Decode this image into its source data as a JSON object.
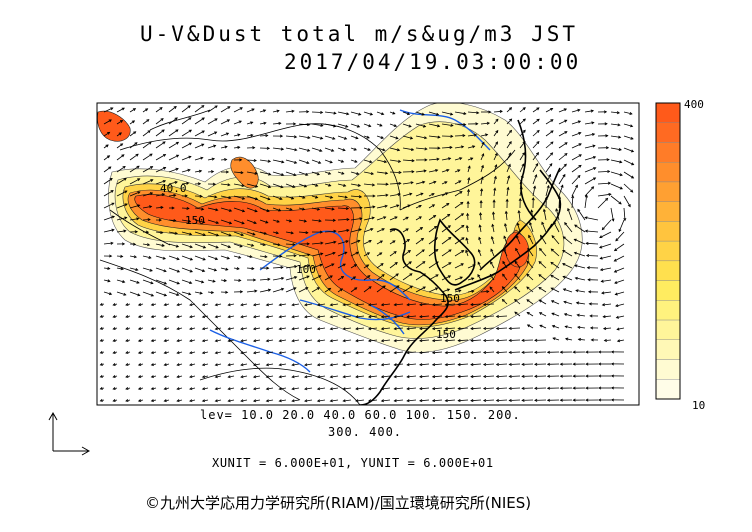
{
  "title": {
    "line1": "U-V&Dust total m/s&ug/m3 JST",
    "line2": "2017/04/19.03:00:00"
  },
  "levels": {
    "line1": "lev= 10.0 20.0 40.0 60.0 100. 150. 200.",
    "line2": "300. 400."
  },
  "units_text": "XUNIT = 6.000E+01, YUNIT = 6.000E+01",
  "colorbar": {
    "max_label": "400",
    "min_label": "10",
    "colors": [
      "#ff5a1a",
      "#ff6a22",
      "#ff7c28",
      "#ff8e2c",
      "#ffa032",
      "#ffb238",
      "#ffc43e",
      "#ffd346",
      "#ffe04e",
      "#ffec60",
      "#fff27e",
      "#fff59a",
      "#fff8b6",
      "#fffbd2",
      "#fffde8"
    ]
  },
  "contour_labels": [
    "40.0",
    "150",
    "100",
    "150",
    "150"
  ],
  "credit": "©九州大学応用力学研究所(RIAM)/国立環境研究所(NIES)",
  "colors": {
    "dust_high": "#ff5a1a",
    "dust_low": "#fff6c0",
    "river": "#1a5fe6"
  }
}
